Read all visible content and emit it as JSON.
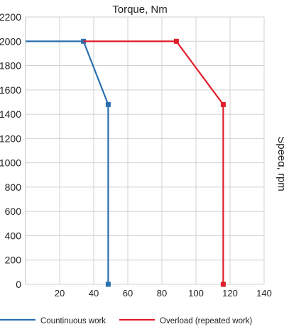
{
  "chart_data": {
    "type": "line",
    "title": "Torque, Nm",
    "xlabel": "",
    "ylabel": "Speed, rpm",
    "xlim": [
      0,
      140
    ],
    "ylim": [
      0,
      2200
    ],
    "x_ticks": [
      20,
      40,
      60,
      80,
      100,
      120,
      140
    ],
    "y_ticks": [
      0,
      200,
      400,
      600,
      800,
      1000,
      1200,
      1400,
      1600,
      1800,
      2000,
      2200
    ],
    "grid": true,
    "legend_position": "bottom",
    "series": [
      {
        "name": "Countinuous work",
        "color": "#2a6fb0",
        "marker": "square",
        "points": [
          [
            0,
            2000
          ],
          [
            34,
            2000
          ],
          [
            48.5,
            1480
          ],
          [
            48.5,
            0
          ]
        ],
        "marked": [
          1,
          2,
          3
        ]
      },
      {
        "name": "Overload (repeated work)",
        "color": "#e01e2a",
        "marker": "square",
        "points": [
          [
            34,
            2000
          ],
          [
            88.5,
            2000
          ],
          [
            116,
            1480
          ],
          [
            116,
            0
          ]
        ],
        "marked": [
          1,
          2,
          3
        ]
      }
    ]
  }
}
